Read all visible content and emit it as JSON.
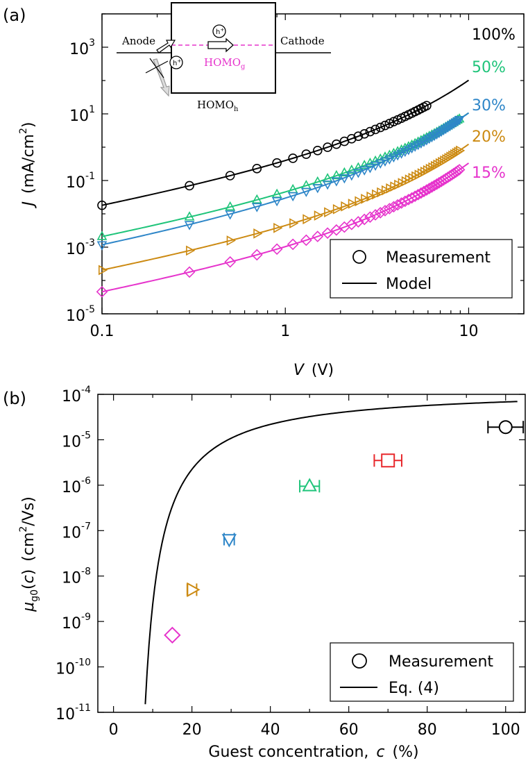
{
  "colors": {
    "c100": "#000000",
    "c50": "#1fc47a",
    "c30": "#2e86c8",
    "c20": "#cc8a12",
    "c15": "#e633cc",
    "c70": "#e8282c"
  },
  "chart_data": [
    {
      "panel": "(a)",
      "type": "line",
      "scale": "log-log",
      "xlabel_var": "V",
      "xlabel_unit": "(V)",
      "ylabel_var": "J",
      "ylabel_unit": "(mA/cm",
      "ylabel_sup": "2",
      "ylabel_close": ")",
      "xlim": [
        0.1,
        20
      ],
      "ylim": [
        1e-05,
        10000
      ],
      "xticks": [
        {
          "value": 0.1,
          "label": "0.1"
        },
        {
          "value": 1,
          "label": "1"
        },
        {
          "value": 10,
          "label": "10"
        }
      ],
      "yticks": [
        {
          "value": 1e-05,
          "base": "10",
          "exp": "-5"
        },
        {
          "value": 0.001,
          "base": "10",
          "exp": "-3"
        },
        {
          "value": 0.1,
          "base": "10",
          "exp": "-1"
        },
        {
          "value": 10,
          "base": "10",
          "exp": "1"
        },
        {
          "value": 1000,
          "base": "10",
          "exp": "3"
        }
      ],
      "series": [
        {
          "name": "100%",
          "color_key": "c100",
          "marker": "circle",
          "measurement": {
            "v_start": 0.1,
            "v_end": 6.0,
            "params": [
              0.13,
              1.0,
              0.12
            ]
          },
          "model": {
            "v_start": 0.1,
            "v_end": 10.0,
            "params": [
              0.13,
              1.0,
              0.12
            ]
          }
        },
        {
          "name": "50%",
          "color_key": "c50",
          "marker": "triangle-up",
          "measurement": {
            "v_start": 0.1,
            "v_end": 9.0,
            "params": [
              0.015,
              1.0,
              0.11
            ]
          },
          "model": {
            "v_start": 0.1,
            "v_end": 10.0,
            "params": [
              0.015,
              1.0,
              0.11
            ]
          }
        },
        {
          "name": "30%",
          "color_key": "c30",
          "marker": "triangle-down",
          "measurement": {
            "v_start": 0.1,
            "v_end": 9.0,
            "params": [
              0.008,
              1.2,
              0.11
            ]
          },
          "model": {
            "v_start": 0.1,
            "v_end": 10.0,
            "params": [
              0.008,
              1.2,
              0.11
            ]
          }
        },
        {
          "name": "20%",
          "color_key": "c20",
          "marker": "triangle-right",
          "measurement": {
            "v_start": 0.1,
            "v_end": 9.0,
            "params": [
              0.0015,
              0.95,
              0.14
            ]
          },
          "model": {
            "v_start": 0.1,
            "v_end": 10.0,
            "params": [
              0.0015,
              0.95,
              0.14
            ]
          }
        },
        {
          "name": "15%",
          "color_key": "c15",
          "marker": "diamond",
          "measurement": {
            "v_start": 0.1,
            "v_end": 9.0,
            "params": [
              0.00033,
              1.0,
              0.145
            ]
          },
          "model": {
            "v_start": 0.1,
            "v_end": 10.0,
            "params": [
              0.00033,
              1.0,
              0.145
            ]
          }
        }
      ],
      "legend": {
        "placement": "bottom-right",
        "measurement": "Measurement",
        "model": "Model"
      },
      "inset": {
        "anode": "Anode",
        "cathode": "Cathode",
        "hole": "h",
        "hole_sup": "+",
        "homo_g": "HOMO",
        "homo_g_sub": "g",
        "homo_h": "HOMO",
        "homo_h_sub": "h"
      }
    },
    {
      "panel": "(b)",
      "type": "scatter",
      "scale": "semilog-y",
      "xlabel": "Guest concentration,",
      "xlabel_var": "c",
      "xlabel_unit": "(%)",
      "ylabel_mu": "μ",
      "ylabel_sub": "g0",
      "ylabel_arg_open": "(",
      "ylabel_arg": "c",
      "ylabel_arg_close": ")",
      "ylabel_unit": "(cm",
      "ylabel_sup": "2",
      "ylabel_tail": "/Vs)",
      "xlim": [
        -4,
        105
      ],
      "ylim": [
        1e-11,
        0.0001
      ],
      "xticks": [
        0,
        20,
        40,
        60,
        80,
        100
      ],
      "yticks": [
        {
          "value": 1e-11,
          "base": "10",
          "exp": "-11"
        },
        {
          "value": 1e-10,
          "base": "10",
          "exp": "-10"
        },
        {
          "value": 1e-09,
          "base": "10",
          "exp": "-9"
        },
        {
          "value": 1e-08,
          "base": "10",
          "exp": "-8"
        },
        {
          "value": 1e-07,
          "base": "10",
          "exp": "-7"
        },
        {
          "value": 1e-06,
          "base": "10",
          "exp": "-6"
        },
        {
          "value": 1e-05,
          "base": "10",
          "exp": "-5"
        },
        {
          "value": 0.0001,
          "base": "10",
          "exp": "-4"
        }
      ],
      "points": [
        {
          "c": 15,
          "mu": 5e-10,
          "xerr": 0,
          "color_key": "c15",
          "marker": "diamond"
        },
        {
          "c": 20,
          "mu": 5e-09,
          "xerr": 1.2,
          "color_key": "c20",
          "marker": "triangle-right"
        },
        {
          "c": 29.5,
          "mu": 6.5e-08,
          "xerr": 1.3,
          "color_key": "c30",
          "marker": "triangle-down"
        },
        {
          "c": 50,
          "mu": 9.5e-07,
          "xerr": 2.5,
          "color_key": "c50",
          "marker": "triangle-up"
        },
        {
          "c": 70,
          "mu": 3.5e-06,
          "xerr": 3.5,
          "color_key": "c70",
          "marker": "square"
        },
        {
          "c": 100,
          "mu": 1.9e-05,
          "xerr": 4.5,
          "color_key": "c100",
          "marker": "circle"
        }
      ],
      "fit_curve": {
        "name": "Eq. (4)",
        "c_start": 8.1,
        "c_end": 103
      },
      "legend": {
        "placement": "bottom-right",
        "measurement": "Measurement",
        "model": "Eq. (4)"
      }
    }
  ]
}
